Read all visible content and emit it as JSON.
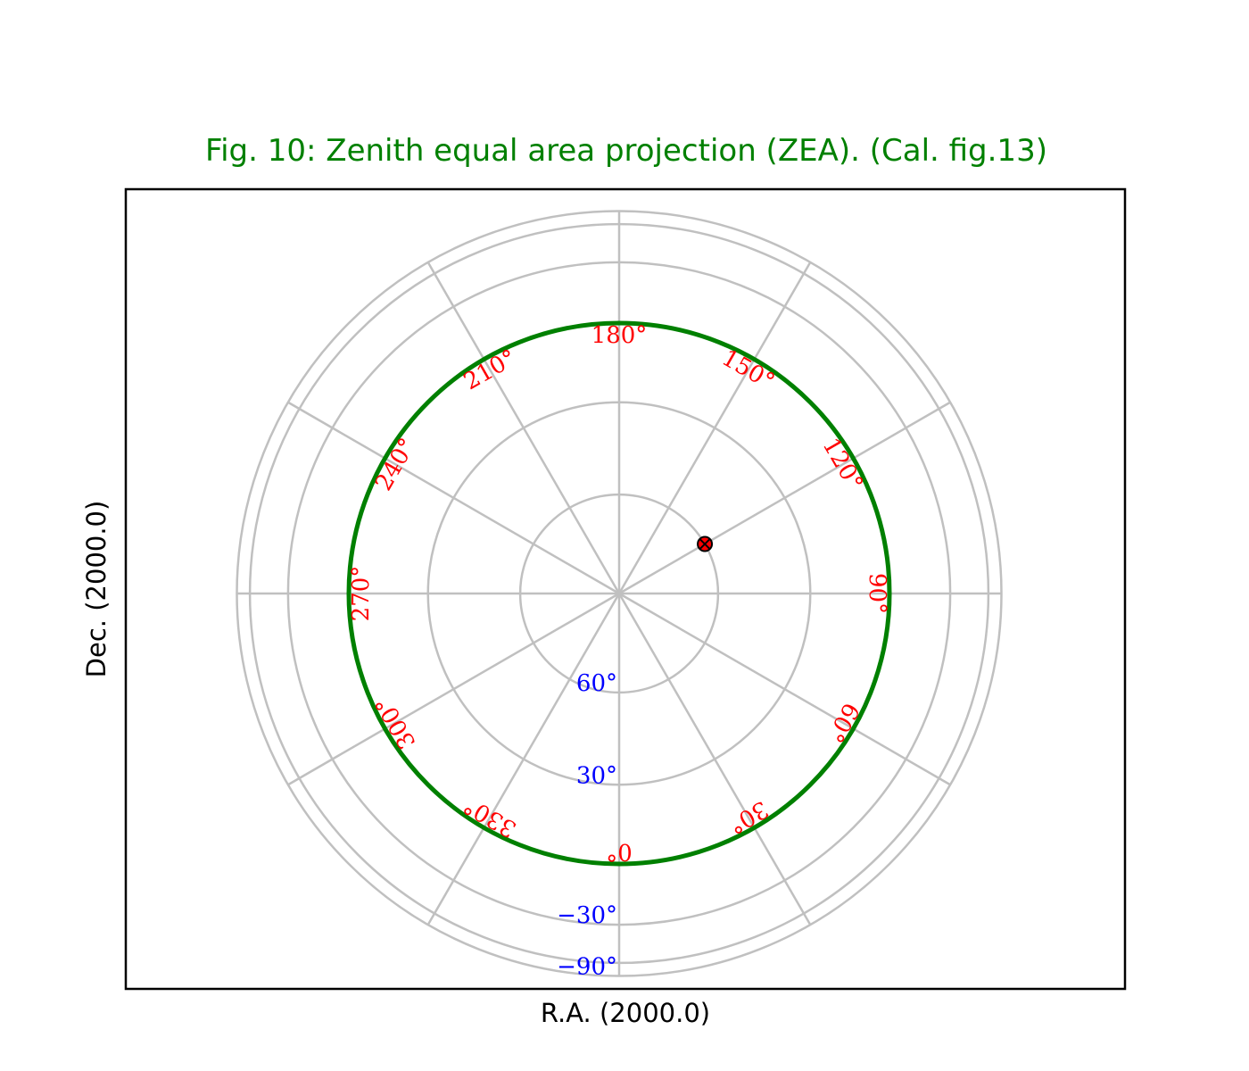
{
  "chart_data": {
    "type": "polar-projection",
    "title": "Fig. 10: Zenith equal area projection (ZEA). (Cal. fig.13)",
    "xlabel": "R.A. (2000.0)",
    "ylabel": "Dec. (2000.0)",
    "grid": true,
    "colors": {
      "title": "#008000",
      "grid": "#c0c0c0",
      "ra_labels": "#ff0000",
      "dec_labels": "#0000ff",
      "border": "#008000",
      "marker": "#ff0000"
    },
    "dec_grid_lines": [
      60,
      30,
      0,
      -30,
      -60,
      -90
    ],
    "border_dec": 0,
    "ra_grid_lines": [
      0,
      30,
      60,
      90,
      120,
      150,
      180,
      210,
      240,
      270,
      300,
      330
    ],
    "ra_tick_labels": [
      {
        "ra": 0,
        "text": "0°"
      },
      {
        "ra": 30,
        "text": "30°"
      },
      {
        "ra": 60,
        "text": "60°"
      },
      {
        "ra": 90,
        "text": "90°"
      },
      {
        "ra": 120,
        "text": "120°"
      },
      {
        "ra": 150,
        "text": "150°"
      },
      {
        "ra": 180,
        "text": "180°"
      },
      {
        "ra": 210,
        "text": "210°"
      },
      {
        "ra": 240,
        "text": "240°"
      },
      {
        "ra": 270,
        "text": "270°"
      },
      {
        "ra": 300,
        "text": "300°"
      },
      {
        "ra": 330,
        "text": "330°"
      }
    ],
    "dec_tick_labels": [
      {
        "dec": 60,
        "text": "60°"
      },
      {
        "dec": 30,
        "text": "30°"
      },
      {
        "dec": -30,
        "text": "−30°"
      },
      {
        "dec": -90,
        "text": "−90°"
      }
    ],
    "markers": [
      {
        "ra": 120,
        "dec": 60
      }
    ]
  }
}
